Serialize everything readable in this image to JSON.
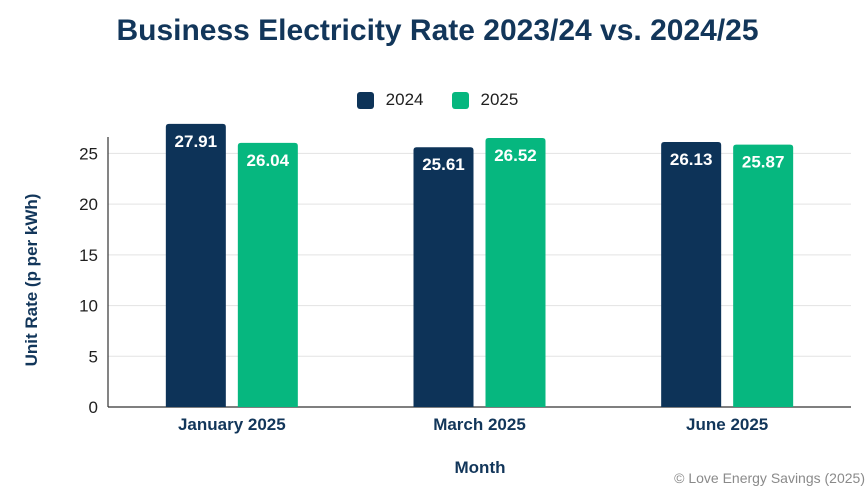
{
  "chart_data": {
    "type": "bar",
    "title": "Business Electricity Rate 2023/24 vs. 2024/25",
    "xlabel": "Month",
    "ylabel": "Unit Rate (p per kWh)",
    "categories": [
      "January 2025",
      "March 2025",
      "June 2025"
    ],
    "series": [
      {
        "name": "2024",
        "color": "#0d3358",
        "values": [
          27.91,
          25.61,
          26.13
        ]
      },
      {
        "name": "2025",
        "color": "#06b77f",
        "values": [
          26.04,
          26.52,
          25.87
        ]
      }
    ],
    "ylim": [
      0,
      28
    ],
    "yticks": [
      0,
      5,
      10,
      15,
      20,
      25
    ],
    "grid": true,
    "legend": "top-center"
  },
  "credit": "© Love Energy Savings (2025)"
}
